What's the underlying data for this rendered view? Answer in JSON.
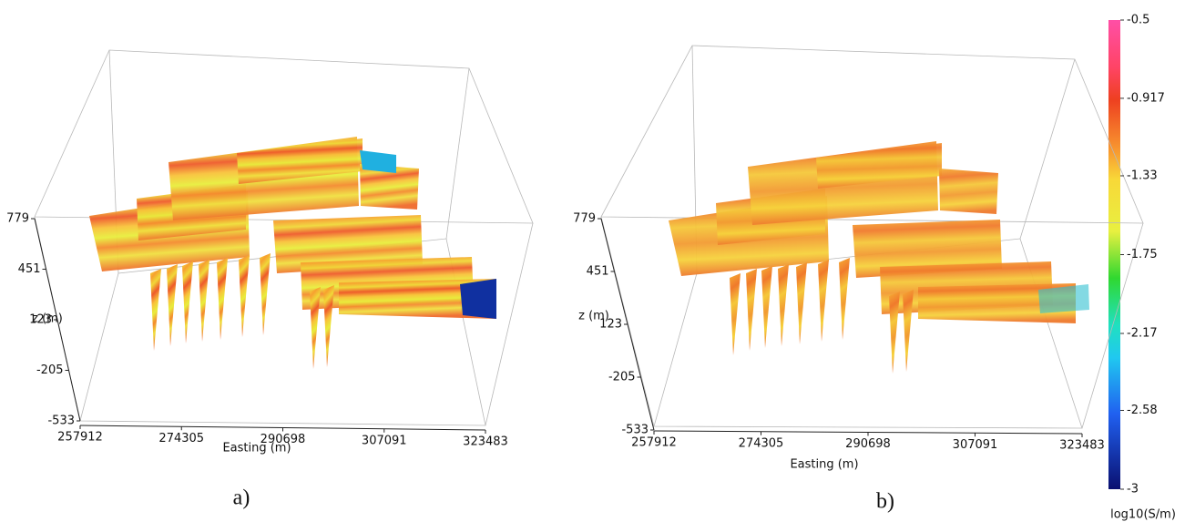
{
  "panels": [
    {
      "label": "a)",
      "z_label": "z (m)",
      "x_label": "Easting (m)",
      "z_ticks": [
        779,
        451,
        123,
        -205,
        -533
      ],
      "x_ticks": [
        257912,
        274305,
        290698,
        307091,
        323483
      ]
    },
    {
      "label": "b)",
      "z_label": "z (m)",
      "x_label": "Easting (m)",
      "z_ticks": [
        779,
        451,
        123,
        -205,
        -533
      ],
      "x_ticks": [
        257912,
        274305,
        290698,
        307091,
        323483
      ]
    }
  ],
  "colorbar": {
    "label": "log10(S/m)",
    "range": [
      -3,
      -0.5
    ],
    "ticks": [
      -0.5,
      -0.917,
      -1.33,
      -1.75,
      -2.17,
      -2.58,
      -3
    ]
  }
}
